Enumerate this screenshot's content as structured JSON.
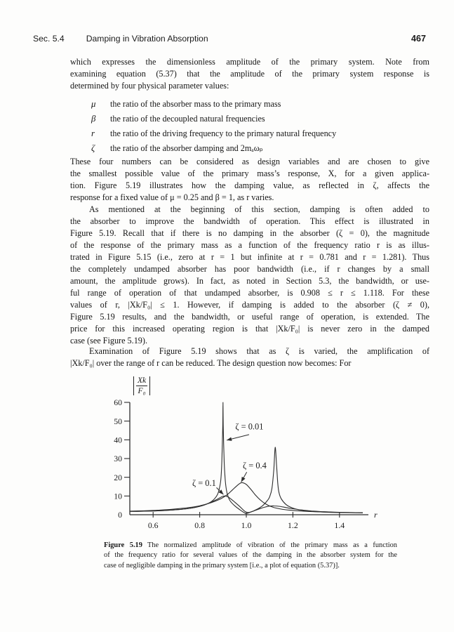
{
  "header": {
    "section": "Sec. 5.4",
    "title": "Damping in Vibration Absorption",
    "page_number": "467"
  },
  "body": {
    "p1_lines": [
      "which expresses the dimensionless amplitude of the primary system. Note from",
      "examining equation (5.37) that the amplitude of the primary system response is",
      "determined by four physical parameter values:"
    ],
    "params": [
      {
        "symbol": "μ",
        "text": "the ratio of the absorber mass to the primary mass"
      },
      {
        "symbol": "β",
        "text": "the ratio of the decoupled natural frequencies"
      },
      {
        "symbol": "r",
        "text": "the ratio of the driving frequency to the primary natural frequency"
      },
      {
        "symbol": "ζ",
        "text": "the ratio of the absorber damping and 2mₐωₚ"
      }
    ],
    "p2_lines": [
      "These four numbers can be considered as design variables and are chosen to give",
      "the smallest possible value of the primary mass’s response, X, for a given applica-",
      "tion. Figure 5.19 illustrates how the damping value, as reflected in ζ, affects the",
      "response for a fixed value of μ = 0.25 and β = 1, as r varies."
    ],
    "p3_lines": [
      "As mentioned at the beginning of this section, damping is often added to",
      "the absorber to improve the bandwidth of operation. This effect is illustrated in",
      "Figure 5.19. Recall that if there is no damping in the absorber (ζ = 0), the magnitude",
      "of the response of the primary mass as a function of the frequency ratio r is as illus-",
      "trated in Figure 5.15 (i.e., zero at r = 1 but infinite at r = 0.781 and r = 1.281). Thus",
      "the completely undamped absorber has poor bandwidth (i.e., if r changes by a small",
      "amount, the amplitude grows). In fact, as noted in Section 5.3, the bandwidth, or use-",
      "ful range of operation of that undamped absorber, is 0.908 ≤ r ≤ 1.118. For these",
      "values of r, |Xk/F₀| ≤ 1. However, if damping is added to the absorber (ζ ≠ 0),",
      "Figure 5.19 results, and the bandwidth, or useful range of operation, is extended. The",
      "price for this increased operating region is that |Xk/F₀| is never zero in the damped",
      "case (see Figure 5.19)."
    ],
    "p4_lines": [
      "Examination of Figure 5.19 shows that as  ζ  is varied, the amplification of",
      "|Xk/F₀| over the range of r can be reduced. The design question now becomes: For"
    ]
  },
  "chart_data": {
    "type": "line",
    "xlabel": "r",
    "ylabel": "|Xk/F0|",
    "ylabel_display": {
      "numerator": "Xk",
      "denominator": "F₀"
    },
    "xlim": [
      0.5,
      1.52
    ],
    "ylim": [
      0,
      60
    ],
    "grid": false,
    "legend": "inline-annotations",
    "x_ticks": [
      {
        "v": 0.6,
        "label": "0.6"
      },
      {
        "v": 0.8,
        "label": "0.8"
      },
      {
        "v": 1.0,
        "label": "1.0"
      },
      {
        "v": 1.2,
        "label": "1.2"
      },
      {
        "v": 1.4,
        "label": "1.4"
      }
    ],
    "y_ticks": [
      {
        "v": 0,
        "label": "0"
      },
      {
        "v": 10,
        "label": "10"
      },
      {
        "v": 20,
        "label": "20"
      },
      {
        "v": 30,
        "label": "30"
      },
      {
        "v": 40,
        "label": "40"
      },
      {
        "v": 50,
        "label": "50"
      },
      {
        "v": 60,
        "label": "60"
      }
    ],
    "series": [
      {
        "name": "zeta-0.01",
        "zeta": 0.01,
        "points": [
          [
            0.5,
            1.8
          ],
          [
            0.56,
            1.9
          ],
          [
            0.62,
            2.1
          ],
          [
            0.68,
            2.5
          ],
          [
            0.73,
            3.0
          ],
          [
            0.78,
            3.9
          ],
          [
            0.82,
            5.2
          ],
          [
            0.85,
            7.0
          ],
          [
            0.87,
            9.5
          ],
          [
            0.88,
            12.0
          ],
          [
            0.89,
            18.0
          ],
          [
            0.895,
            28.0
          ],
          [
            0.899,
            48.0
          ],
          [
            0.9,
            60.0
          ],
          [
            0.901,
            48.0
          ],
          [
            0.905,
            28.0
          ],
          [
            0.91,
            18.0
          ],
          [
            0.915,
            13.0
          ],
          [
            0.92,
            10.5
          ],
          [
            0.93,
            7.5
          ],
          [
            0.95,
            4.8
          ],
          [
            0.97,
            2.9
          ],
          [
            0.99,
            1.2
          ],
          [
            1.0,
            0.6
          ],
          [
            1.01,
            1.0
          ],
          [
            1.03,
            2.0
          ],
          [
            1.05,
            3.2
          ],
          [
            1.07,
            4.8
          ],
          [
            1.09,
            7.5
          ],
          [
            1.1,
            9.5
          ],
          [
            1.11,
            14.0
          ],
          [
            1.118,
            24.0
          ],
          [
            1.124,
            36.0
          ],
          [
            1.13,
            26.0
          ],
          [
            1.135,
            17.0
          ],
          [
            1.14,
            12.0
          ],
          [
            1.15,
            8.5
          ],
          [
            1.17,
            5.5
          ],
          [
            1.19,
            4.0
          ],
          [
            1.22,
            2.8
          ],
          [
            1.26,
            2.0
          ],
          [
            1.3,
            1.6
          ],
          [
            1.35,
            1.35
          ],
          [
            1.4,
            1.2
          ],
          [
            1.45,
            1.1
          ],
          [
            1.5,
            1.05
          ]
        ]
      },
      {
        "name": "zeta-0.1",
        "zeta": 0.1,
        "points": [
          [
            0.5,
            1.8
          ],
          [
            0.56,
            1.9
          ],
          [
            0.62,
            2.1
          ],
          [
            0.68,
            2.5
          ],
          [
            0.73,
            3.0
          ],
          [
            0.78,
            3.9
          ],
          [
            0.82,
            5.2
          ],
          [
            0.85,
            6.8
          ],
          [
            0.87,
            7.9
          ],
          [
            0.89,
            9.3
          ],
          [
            0.9,
            9.9
          ],
          [
            0.91,
            10.0
          ],
          [
            0.92,
            9.6
          ],
          [
            0.93,
            8.8
          ],
          [
            0.95,
            6.8
          ],
          [
            0.97,
            4.6
          ],
          [
            0.99,
            2.2
          ],
          [
            1.0,
            1.4
          ],
          [
            1.01,
            1.2
          ],
          [
            1.02,
            1.5
          ],
          [
            1.04,
            2.4
          ],
          [
            1.06,
            3.3
          ],
          [
            1.08,
            4.1
          ],
          [
            1.1,
            4.6
          ],
          [
            1.12,
            4.7
          ],
          [
            1.14,
            4.5
          ],
          [
            1.16,
            4.1
          ],
          [
            1.18,
            3.6
          ],
          [
            1.2,
            3.2
          ],
          [
            1.24,
            2.5
          ],
          [
            1.28,
            2.0
          ],
          [
            1.32,
            1.7
          ],
          [
            1.36,
            1.45
          ],
          [
            1.4,
            1.3
          ],
          [
            1.45,
            1.15
          ],
          [
            1.5,
            1.05
          ]
        ]
      },
      {
        "name": "zeta-0.4",
        "zeta": 0.4,
        "points": [
          [
            0.5,
            1.9
          ],
          [
            0.56,
            2.1
          ],
          [
            0.62,
            2.4
          ],
          [
            0.68,
            2.9
          ],
          [
            0.73,
            3.5
          ],
          [
            0.78,
            4.3
          ],
          [
            0.82,
            5.4
          ],
          [
            0.85,
            6.5
          ],
          [
            0.88,
            7.9
          ],
          [
            0.9,
            9.2
          ],
          [
            0.92,
            10.9
          ],
          [
            0.94,
            13.2
          ],
          [
            0.96,
            15.5
          ],
          [
            0.975,
            16.9
          ],
          [
            0.985,
            17.1
          ],
          [
            1.0,
            16.2
          ],
          [
            1.02,
            13.5
          ],
          [
            1.04,
            10.4
          ],
          [
            1.06,
            7.9
          ],
          [
            1.08,
            6.0
          ],
          [
            1.1,
            4.7
          ],
          [
            1.12,
            3.8
          ],
          [
            1.15,
            3.0
          ],
          [
            1.18,
            2.5
          ],
          [
            1.22,
            2.1
          ],
          [
            1.26,
            1.8
          ],
          [
            1.3,
            1.6
          ],
          [
            1.35,
            1.4
          ],
          [
            1.4,
            1.25
          ],
          [
            1.45,
            1.15
          ],
          [
            1.5,
            1.05
          ]
        ]
      }
    ],
    "annotations": [
      {
        "text": "ζ = 0.01",
        "text_at": [
          0.953,
          45.5
        ],
        "arrow_from": [
          1.012,
          42.8
        ],
        "arrow_to": [
          0.916,
          39.8
        ]
      },
      {
        "text": "ζ = 0.4",
        "text_at": [
          0.985,
          24.7
        ],
        "arrow_from": [
          1.002,
          22.8
        ],
        "arrow_to": [
          0.978,
          17.5
        ]
      },
      {
        "text": "ζ = 0.1",
        "text_at": [
          0.768,
          15.4
        ],
        "arrow_from": [
          0.872,
          14.5
        ],
        "arrow_to": [
          0.902,
          10.8
        ]
      }
    ],
    "ink_color": "#2d2d2d"
  },
  "caption": {
    "label": "Figure 5.19",
    "line1_rest": "The normalized amplitude of vibration of the primary mass as a function",
    "line2": "of the frequency ratio for several values of the damping in the absorber system for the",
    "line3": "case of negligible damping in the primary system [i.e., a plot of equation (5.37)]."
  }
}
